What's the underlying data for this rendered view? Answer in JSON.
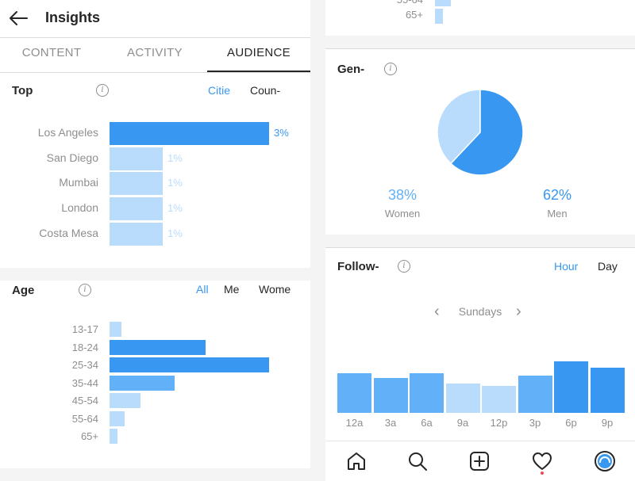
{
  "header": {
    "title": "Insights"
  },
  "tabs": [
    {
      "label": "CONTENT",
      "active": false
    },
    {
      "label": "ACTIVITY",
      "active": false
    },
    {
      "label": "AUDIENCE",
      "active": true
    }
  ],
  "top_locations": {
    "title": "Top",
    "toggles": [
      {
        "label": "Citie",
        "active": true
      },
      {
        "label": "Coun-",
        "active": false
      }
    ],
    "chart_data": {
      "type": "bar",
      "orientation": "horizontal",
      "categories": [
        "Los Angeles",
        "San Diego",
        "Mumbai",
        "London",
        "Costa Mesa"
      ],
      "values": [
        3,
        1,
        1,
        1,
        1
      ],
      "labels": [
        "3%",
        "1%",
        "1%",
        "1%",
        "1%"
      ],
      "unit": "%"
    }
  },
  "age_range": {
    "title": "Age",
    "toggles": [
      {
        "label": "All",
        "active": true
      },
      {
        "label": "Me",
        "active": false
      },
      {
        "label": "Wome",
        "active": false
      }
    ],
    "chart_data": {
      "type": "bar",
      "orientation": "horizontal",
      "categories": [
        "13-17",
        "18-24",
        "25-34",
        "35-44",
        "45-54",
        "55-64",
        "65+"
      ],
      "values": [
        0.075,
        0.6,
        1.0,
        0.41,
        0.195,
        0.095,
        0.05
      ],
      "value_unit": "fraction of largest group"
    }
  },
  "age_tail": {
    "category": "65+",
    "partial_label": "55-64",
    "value": 0.05
  },
  "gender": {
    "title": "Gen-",
    "chart_data": {
      "type": "pie",
      "categories": [
        "Women",
        "Men"
      ],
      "values": [
        38,
        62
      ],
      "labels": [
        "38%",
        "62%"
      ]
    }
  },
  "followers": {
    "title": "Follow-",
    "toggles": [
      {
        "label": "Hour",
        "active": true
      },
      {
        "label": "Day",
        "active": false
      }
    ],
    "day_selector": {
      "label": "Sundays",
      "prev": "‹",
      "next": "›"
    },
    "chart_data": {
      "type": "bar",
      "categories": [
        "12a",
        "3a",
        "6a",
        "9a",
        "12p",
        "3p",
        "6p",
        "9p"
      ],
      "values": [
        0.77,
        0.67,
        0.77,
        0.57,
        0.53,
        0.73,
        1.0,
        0.88
      ],
      "value_unit": "fraction of peak hour"
    }
  },
  "colors": {
    "primary": "#3897f0",
    "strong": "#3897f0",
    "medium": "#62b0f7",
    "light": "#b9dcfc",
    "muted_text": "#8e8e8e",
    "separator": "#dbdbdb"
  },
  "bottom_nav": [
    {
      "icon": "home-icon"
    },
    {
      "icon": "search-icon"
    },
    {
      "icon": "add-post-icon"
    },
    {
      "icon": "activity-heart-icon"
    },
    {
      "icon": "profile-avatar-icon"
    }
  ]
}
